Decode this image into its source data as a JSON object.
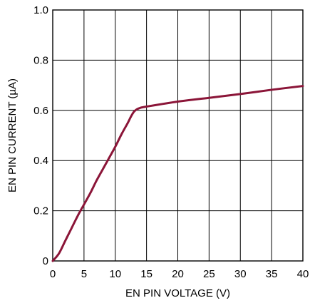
{
  "chart_data": {
    "type": "line",
    "title": "",
    "xlabel": "EN PIN VOLTAGE (V)",
    "ylabel": "EN PIN CURRENT (µA)",
    "xlim": [
      0,
      40
    ],
    "ylim": [
      0,
      1.0
    ],
    "x_ticks": [
      0,
      5,
      10,
      15,
      20,
      25,
      30,
      35,
      40
    ],
    "x_tick_labels": [
      "0",
      "5",
      "10",
      "15",
      "20",
      "25",
      "30",
      "35",
      "40"
    ],
    "y_ticks": [
      0,
      0.2,
      0.4,
      0.6,
      0.8,
      1.0
    ],
    "y_tick_labels": [
      "0",
      "0.2",
      "0.4",
      "0.6",
      "0.8",
      "1.0"
    ],
    "grid": true,
    "legend": "none",
    "series": [
      {
        "color": "#8b1538",
        "x": [
          0,
          1,
          2,
          3,
          4,
          5,
          6,
          7,
          8,
          9,
          10,
          11,
          12,
          12.5,
          13,
          13.5,
          14,
          15,
          20,
          25,
          30,
          35,
          40
        ],
        "y": [
          0,
          0.03,
          0.08,
          0.13,
          0.18,
          0.225,
          0.27,
          0.32,
          0.365,
          0.41,
          0.455,
          0.505,
          0.55,
          0.575,
          0.595,
          0.605,
          0.61,
          0.615,
          0.635,
          0.65,
          0.665,
          0.682,
          0.697
        ]
      }
    ]
  }
}
